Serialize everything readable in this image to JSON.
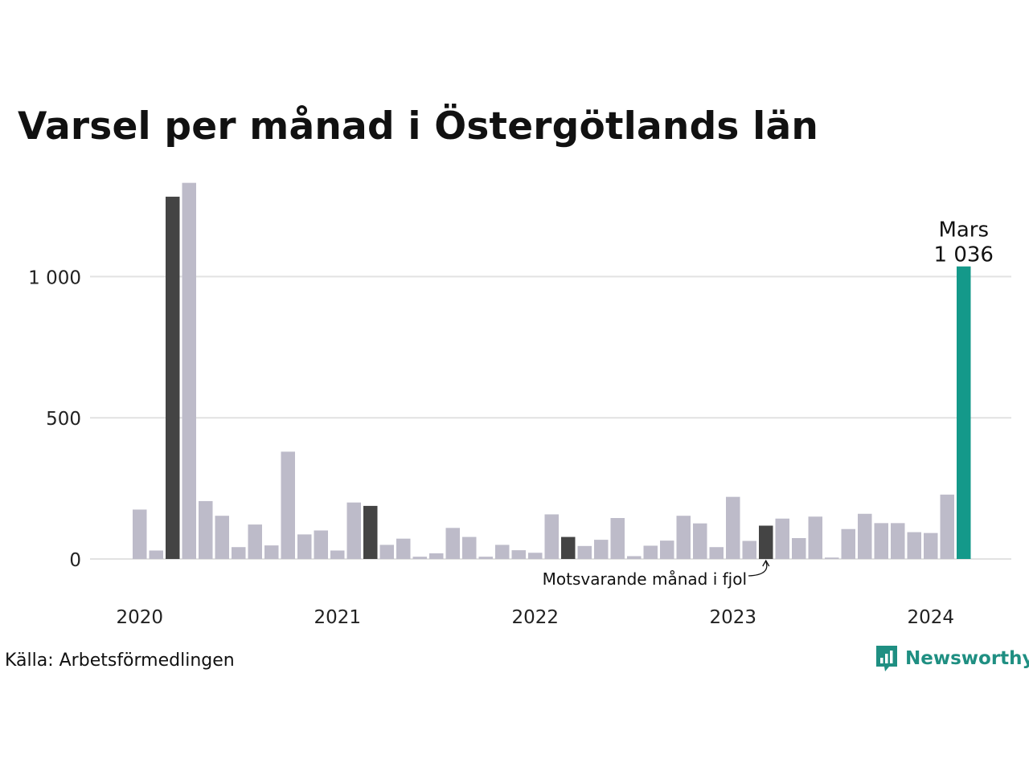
{
  "title": "Varsel per månad i Östergötlands län",
  "source": "Källa: Arbetsförmedlingen",
  "brand": {
    "name": "Newsworthy",
    "icon": "newsworthy-logo-icon",
    "color": "#1f8f82"
  },
  "colors": {
    "regular": "#bdbbc9",
    "comparison": "#444444",
    "current": "#14998a",
    "grid": "#e2e2e2"
  },
  "chart_data": {
    "type": "bar",
    "title": "Varsel per månad i Östergötlands län",
    "xlabel": "",
    "ylabel": "",
    "ylim": [
      0,
      1350
    ],
    "yticks": [
      0,
      500,
      1000
    ],
    "ytick_labels": [
      "0",
      "500",
      "1 000"
    ],
    "xtick_labels": [
      "2020",
      "2021",
      "2022",
      "2023",
      "2024"
    ],
    "grid": "horizontal",
    "categories": [
      "2020-01",
      "2020-02",
      "2020-03",
      "2020-04",
      "2020-05",
      "2020-06",
      "2020-07",
      "2020-08",
      "2020-09",
      "2020-10",
      "2020-11",
      "2020-12",
      "2021-01",
      "2021-02",
      "2021-03",
      "2021-04",
      "2021-05",
      "2021-06",
      "2021-07",
      "2021-08",
      "2021-09",
      "2021-10",
      "2021-11",
      "2021-12",
      "2022-01",
      "2022-02",
      "2022-03",
      "2022-04",
      "2022-05",
      "2022-06",
      "2022-07",
      "2022-08",
      "2022-09",
      "2022-10",
      "2022-11",
      "2022-12",
      "2023-01",
      "2023-02",
      "2023-03",
      "2023-04",
      "2023-05",
      "2023-06",
      "2023-07",
      "2023-08",
      "2023-09",
      "2023-10",
      "2023-11",
      "2023-12",
      "2024-01",
      "2024-02",
      "2024-03"
    ],
    "values": [
      175,
      30,
      1283,
      1332,
      205,
      153,
      42,
      122,
      48,
      380,
      87,
      101,
      30,
      200,
      188,
      50,
      72,
      8,
      20,
      110,
      78,
      8,
      50,
      31,
      22,
      158,
      78,
      46,
      68,
      145,
      10,
      47,
      65,
      153,
      126,
      42,
      220,
      64,
      118,
      143,
      74,
      150,
      5,
      106,
      160,
      127,
      127,
      95,
      92,
      228,
      1036
    ],
    "highlight": {
      "current": {
        "category": "2024-03",
        "label": "Mars",
        "value_label": "1 036"
      },
      "comparison": [
        "2020-03",
        "2021-03",
        "2022-03",
        "2023-03"
      ],
      "annotation": "Motsvarande månad i fjol"
    }
  }
}
